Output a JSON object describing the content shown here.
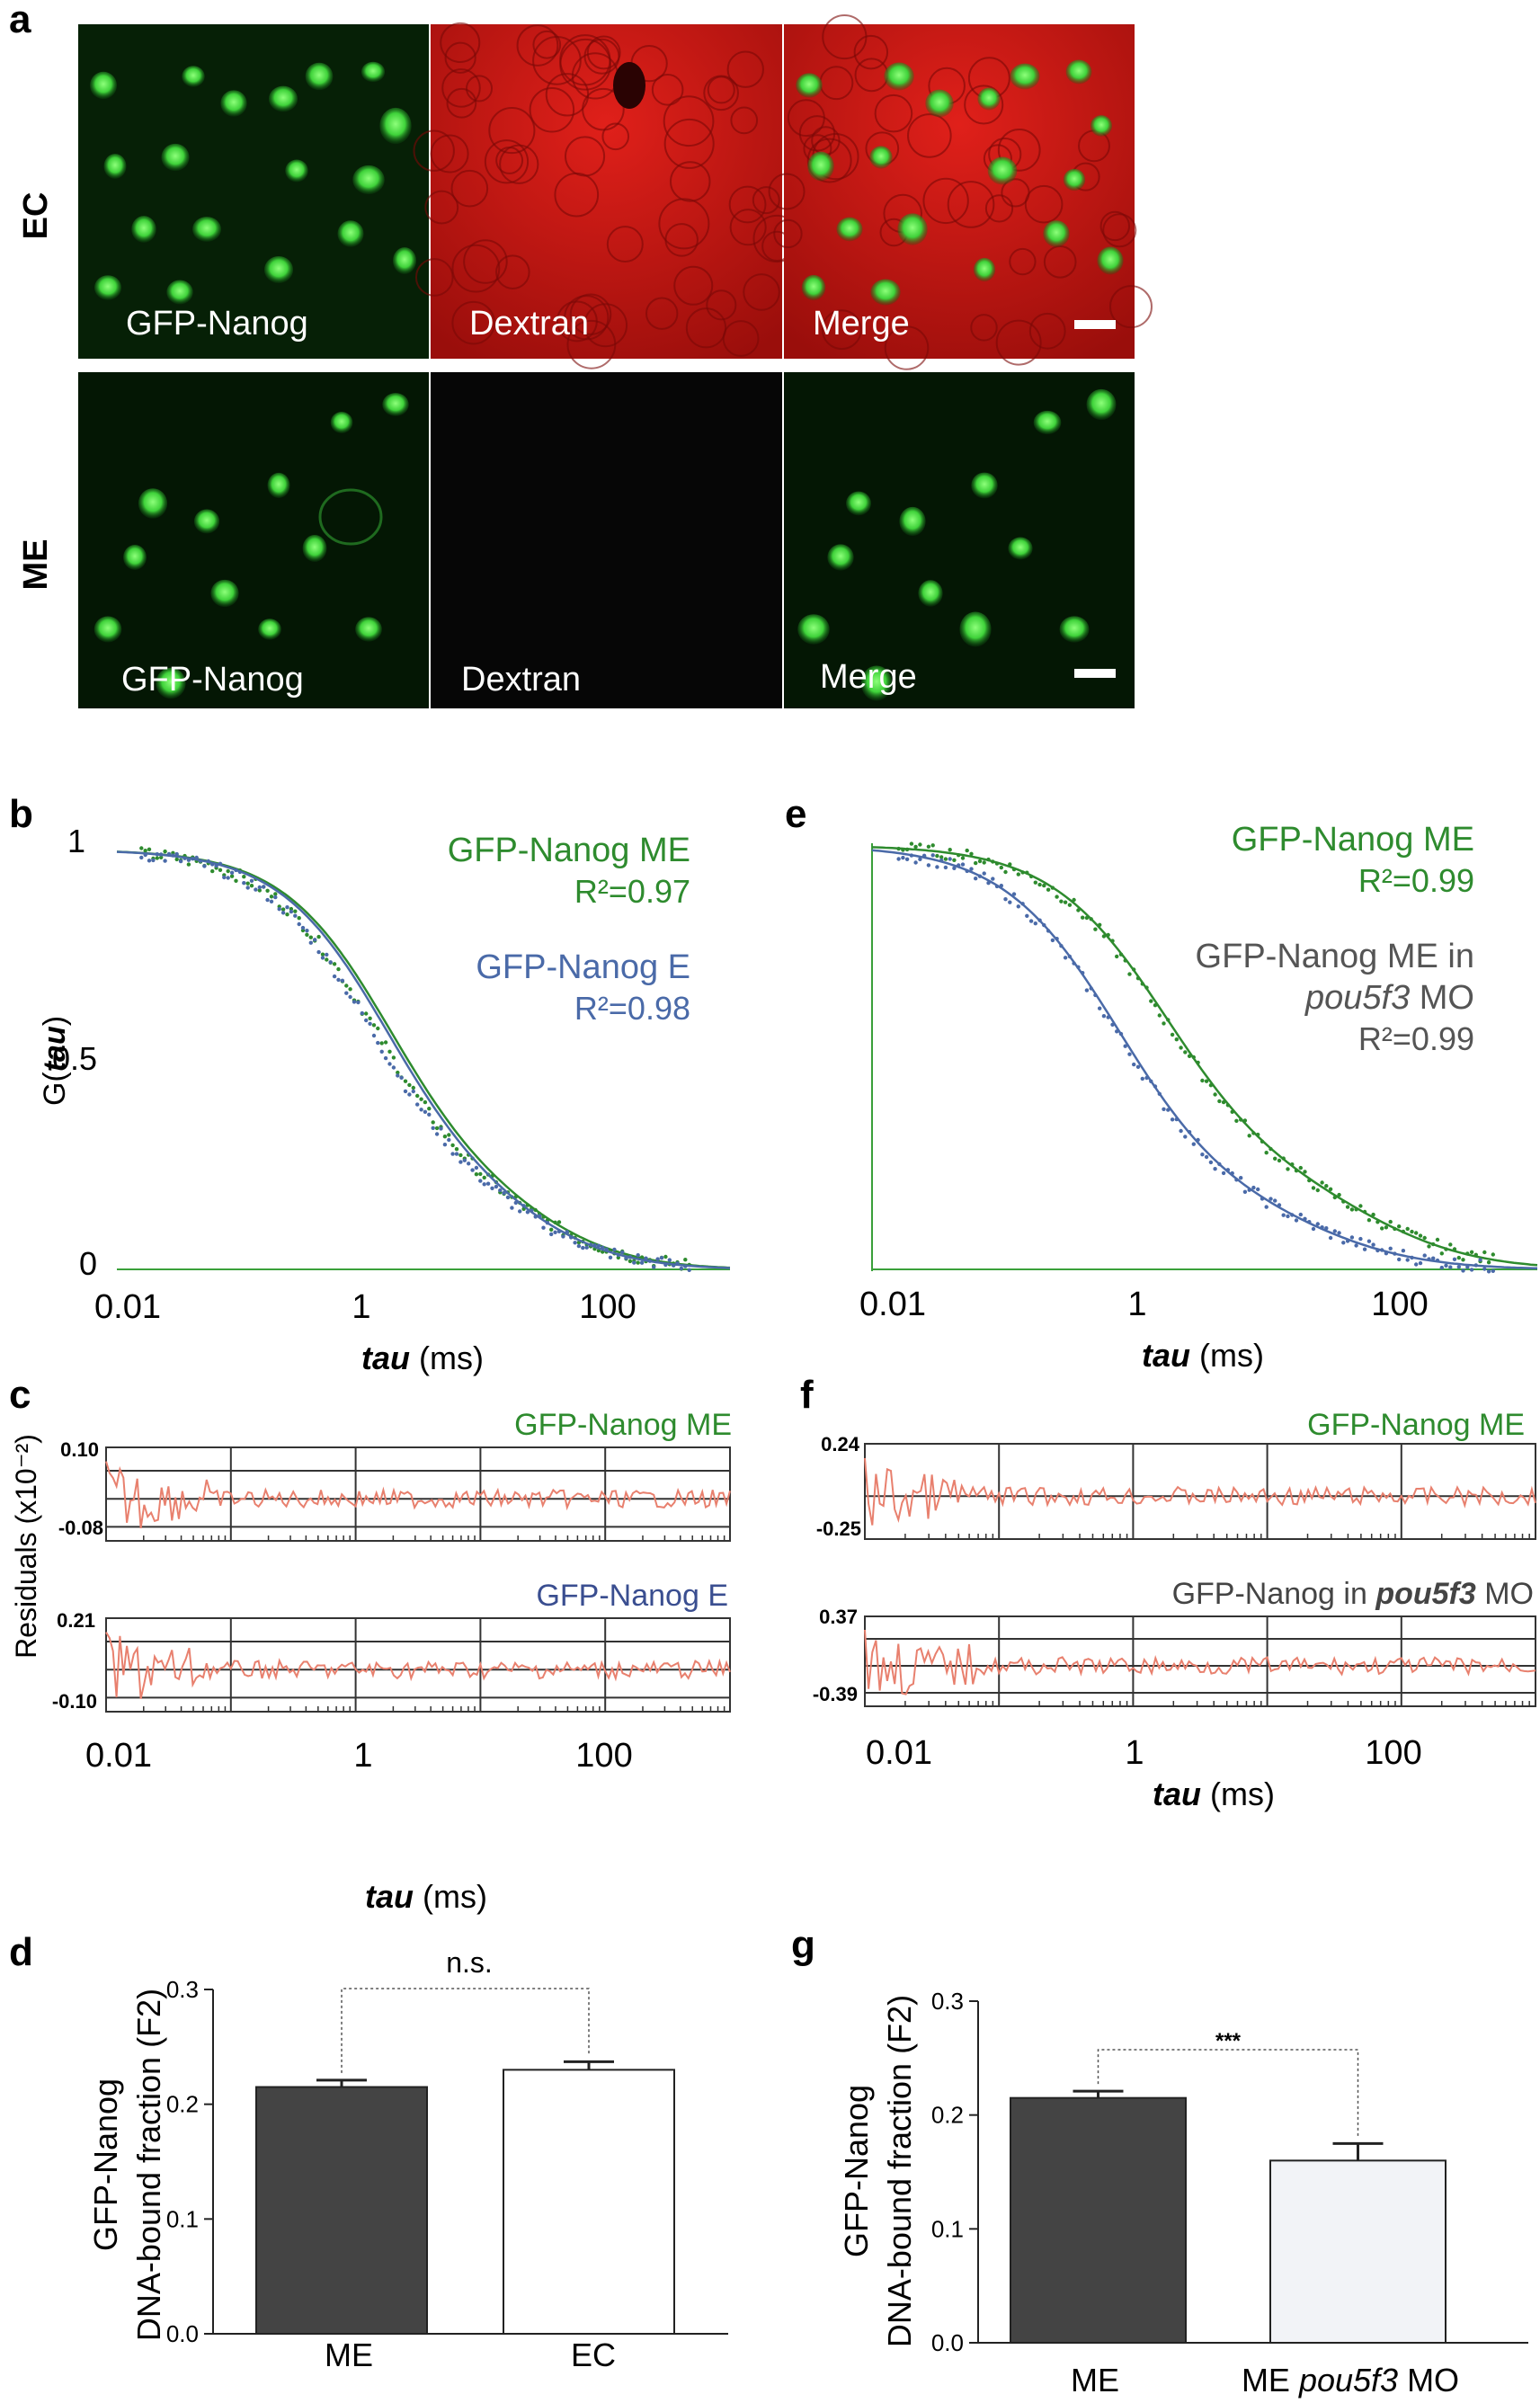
{
  "colors": {
    "green": "#2e8b2e",
    "blue": "#4a6aa8",
    "gray": "#555555",
    "residual": "#e8806e",
    "bar_dark": "#444444",
    "bar_light": "#ffffff",
    "bar_light2": "#f2f3f7"
  },
  "panel_a": {
    "letter": "a",
    "rows": [
      {
        "label": "EC",
        "panels": [
          "GFP-Nanog",
          "Dextran",
          "Merge"
        ]
      },
      {
        "label": "ME",
        "panels": [
          "GFP-Nanog",
          "Dextran",
          "Merge"
        ]
      }
    ]
  },
  "panel_b": {
    "letter": "b",
    "ylabel_main": "G(",
    "ylabel_italic": "tau",
    "ylabel_end": ")",
    "xlabel_italic": "tau",
    "xlabel_rest": " (ms)",
    "yticks": [
      "1",
      "0.5",
      "0"
    ],
    "xticks": [
      "0.01",
      "1",
      "100"
    ],
    "legend": [
      {
        "name": "GFP-Nanog ME",
        "r2": "R²=0.97"
      },
      {
        "name": "GFP-Nanog E",
        "r2": "R²=0.98"
      }
    ]
  },
  "panel_e": {
    "letter": "e",
    "xlabel_italic": "tau",
    "xlabel_rest": " (ms)",
    "xticks": [
      "0.01",
      "1",
      "100"
    ],
    "legend": [
      {
        "name": "GFP-Nanog ME",
        "r2": "R²=0.99"
      },
      {
        "line1": "GFP-Nanog ME in",
        "line2": "pou5f3",
        "line2b": " MO",
        "r2": "R²=0.99"
      }
    ]
  },
  "panel_c": {
    "letter": "c",
    "ylabel": "Residuals (x10⁻²)",
    "xlabel_italic": "tau",
    "xlabel_rest": " (ms)",
    "xticks": [
      "0.01",
      "1",
      "100"
    ],
    "top": {
      "name": "GFP-Nanog ME",
      "ymax": "0.10",
      "ymin": "-0.08"
    },
    "bottom": {
      "name": "GFP-Nanog E",
      "ymax": "0.21",
      "ymin": "-0.10"
    }
  },
  "panel_f": {
    "letter": "f",
    "xlabel_italic": "tau",
    "xlabel_rest": " (ms)",
    "xticks": [
      "0.01",
      "1",
      "100"
    ],
    "top": {
      "name": "GFP-Nanog ME",
      "ymax": "0.24",
      "ymin": "-0.25"
    },
    "bottom": {
      "name_a": "GFP-Nanog in ",
      "name_b": "pou5f3",
      "name_c": " MO",
      "ymax": "0.37",
      "ymin": "-0.39"
    }
  },
  "chart_data": [
    {
      "type": "bar",
      "panel": "d",
      "categories": [
        "ME",
        "EC"
      ],
      "values": [
        0.215,
        0.23
      ],
      "errors": [
        0.006,
        0.007
      ],
      "ylabel": "GFP-Nanog DNA-bound fraction (F2)",
      "ylim": [
        0,
        0.3
      ],
      "yticks": [
        "0.0",
        "0.1",
        "0.2",
        "0.3"
      ],
      "significance": "n.s."
    },
    {
      "type": "bar",
      "panel": "g",
      "categories": [
        "ME",
        "ME pou5f3 MO"
      ],
      "values": [
        0.215,
        0.16
      ],
      "errors": [
        0.006,
        0.015
      ],
      "ylabel": "GFP-Nanog DNA-bound fraction (F2)",
      "ylim": [
        0,
        0.3
      ],
      "yticks": [
        "0.0",
        "0.1",
        "0.2",
        "0.3"
      ],
      "significance": "***"
    }
  ],
  "panel_d": {
    "letter": "d",
    "ylabel1": "GFP-Nanog",
    "ylabel2": "DNA-bound fraction (F2)",
    "cat1": "ME",
    "cat2": "EC",
    "sig": "n.s."
  },
  "panel_g": {
    "letter": "g",
    "ylabel1": "GFP-Nanog",
    "ylabel2": "DNA-bound fraction (F2)",
    "cat1": "ME",
    "cat2a": "ME ",
    "cat2b": "pou5f3",
    "cat2c": " MO",
    "sig": "***"
  }
}
